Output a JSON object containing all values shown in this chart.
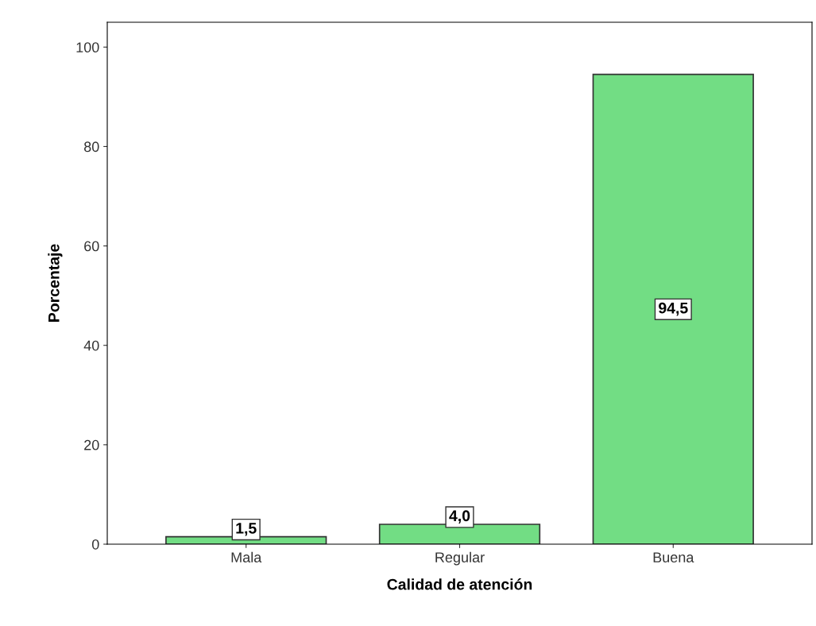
{
  "chart_data": {
    "type": "bar",
    "xlabel": "Calidad de atención",
    "ylabel": "Porcentaje",
    "categories": [
      "Mala",
      "Regular",
      "Buena"
    ],
    "values": [
      1.5,
      4.0,
      94.5
    ],
    "value_labels": [
      "1,5",
      "4,0",
      "94,5"
    ],
    "color": "#72dd84",
    "ylim": [
      0,
      105
    ],
    "yticks": [
      0,
      20,
      40,
      60,
      80,
      100
    ],
    "grid": false
  }
}
